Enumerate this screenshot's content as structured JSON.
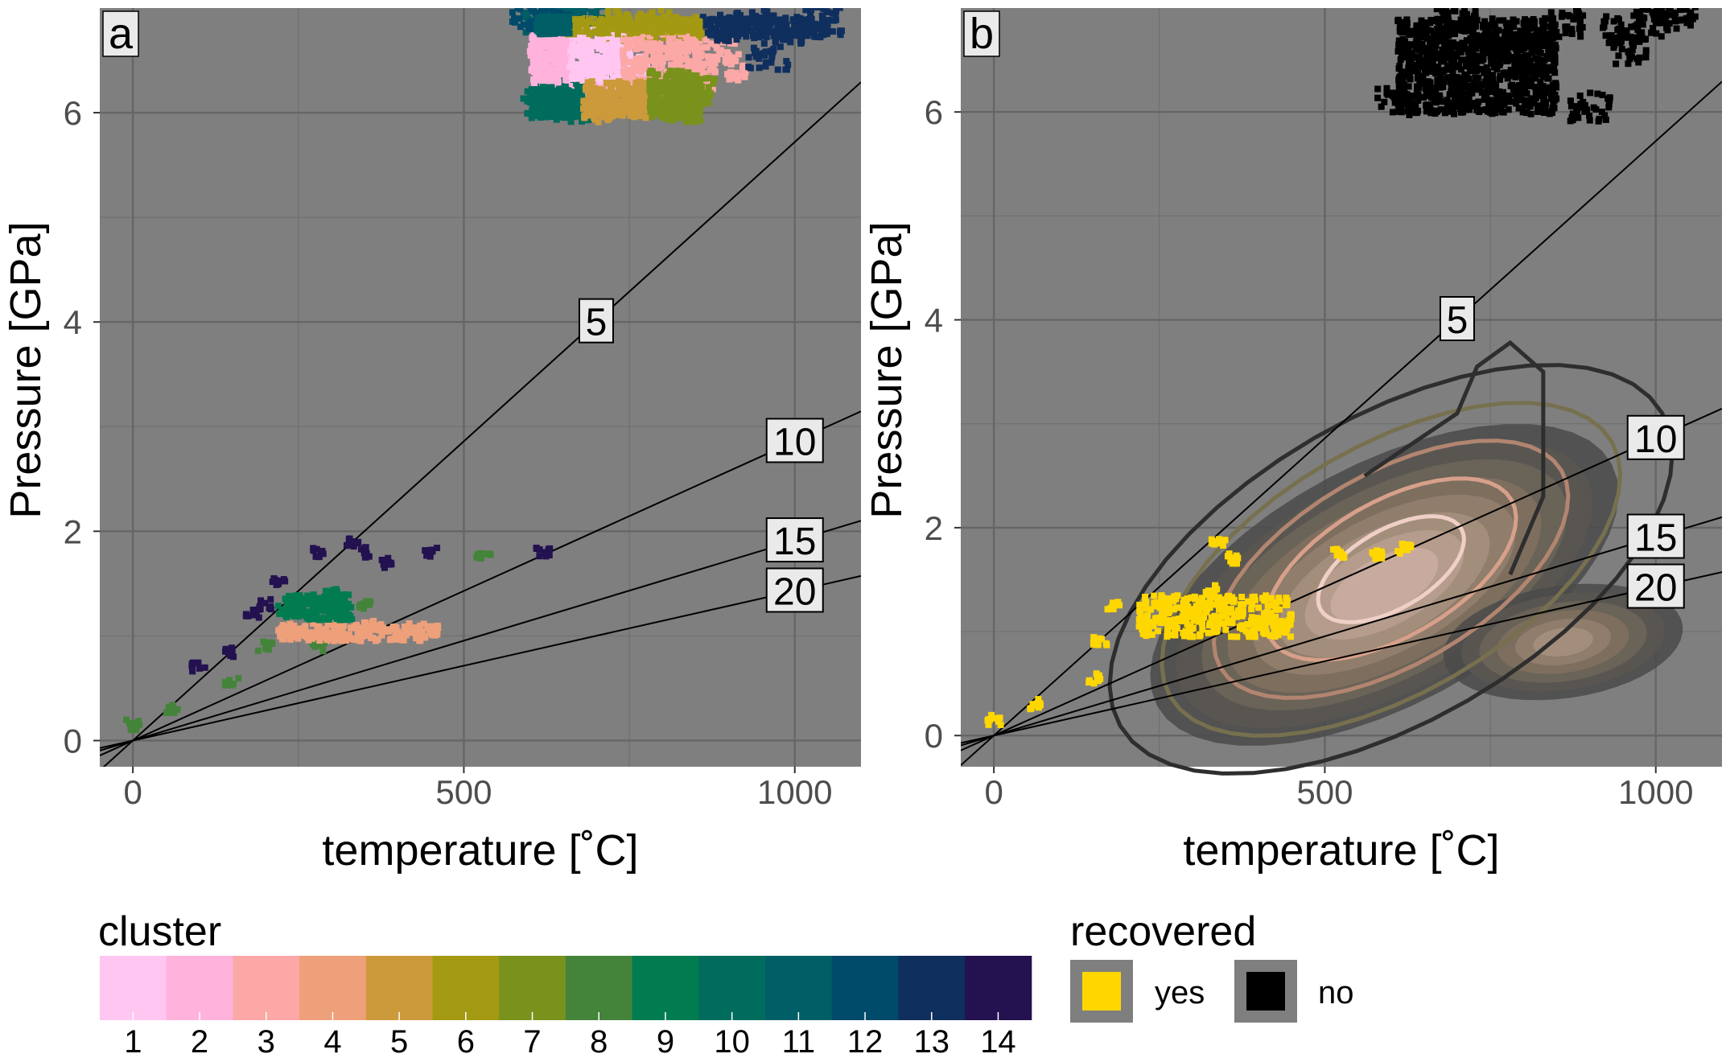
{
  "chart_data": [
    {
      "panel": "a",
      "type": "scatter",
      "xlabel": "temperature [˚C]",
      "ylabel": "Pressure [GPa]",
      "xlim": [
        -50,
        1100
      ],
      "ylim": [
        -0.25,
        7.0
      ],
      "xticks": [
        0,
        500,
        1000
      ],
      "yticks": [
        0,
        2,
        4,
        6
      ],
      "background": "#7f7f7f",
      "grid": true,
      "geotherm_lines": [
        {
          "label": "5",
          "slope": 0.00572,
          "label_x": 700
        },
        {
          "label": "10",
          "slope": 0.00286,
          "label_x": 1000
        },
        {
          "label": "15",
          "slope": 0.00191,
          "label_x": 1000
        },
        {
          "label": "20",
          "slope": 0.00143,
          "label_x": 1000
        }
      ],
      "series": [
        {
          "cluster": 1,
          "points": [
            [
              700,
              6.55
            ],
            [
              740,
              6.65
            ],
            [
              760,
              6.4
            ],
            [
              720,
              6.3
            ]
          ]
        },
        {
          "cluster": 2,
          "points": [
            [
              630,
              6.5
            ],
            [
              650,
              6.3
            ],
            [
              645,
              6.7
            ],
            [
              700,
              6.15
            ]
          ]
        },
        {
          "cluster": 3,
          "points": [
            [
              810,
              6.55
            ],
            [
              850,
              6.35
            ],
            [
              880,
              6.6
            ],
            [
              900,
              6.45
            ]
          ]
        },
        {
          "cluster": 4,
          "points": [
            [
              230,
              1.05
            ],
            [
              300,
              1.0
            ],
            [
              360,
              1.1
            ],
            [
              420,
              1.05
            ],
            [
              450,
              1.05
            ]
          ]
        },
        {
          "cluster": 5,
          "points": [
            [
              690,
              6.1
            ],
            [
              720,
              6.05
            ],
            [
              760,
              6.1
            ],
            [
              770,
              6.2
            ]
          ]
        },
        {
          "cluster": 6,
          "points": [
            [
              710,
              6.85
            ],
            [
              760,
              6.8
            ],
            [
              790,
              6.85
            ],
            [
              830,
              6.8
            ]
          ]
        },
        {
          "cluster": 7,
          "points": [
            [
              800,
              6.1
            ],
            [
              830,
              6.05
            ],
            [
              850,
              6.2
            ],
            [
              820,
              6.25
            ]
          ]
        },
        {
          "cluster": 8,
          "points": [
            [
              0,
              0.15
            ],
            [
              60,
              0.3
            ],
            [
              150,
              0.55
            ],
            [
              200,
              0.9
            ],
            [
              280,
              0.9
            ],
            [
              350,
              1.3
            ],
            [
              530,
              1.75
            ]
          ]
        },
        {
          "cluster": 9,
          "points": [
            [
              230,
              1.25
            ],
            [
              260,
              1.35
            ],
            [
              290,
              1.3
            ],
            [
              320,
              1.2
            ],
            [
              300,
              1.4
            ]
          ]
        },
        {
          "cluster": 10,
          "points": [
            [
              620,
              6.1
            ],
            [
              660,
              6.05
            ],
            [
              640,
              6.2
            ]
          ]
        },
        {
          "cluster": 11,
          "points": [
            [
              620,
              6.85
            ],
            [
              650,
              6.9
            ],
            [
              680,
              6.88
            ]
          ]
        },
        {
          "cluster": 12,
          "points": [
            [
              600,
              6.9
            ],
            [
              630,
              6.92
            ]
          ]
        },
        {
          "cluster": 13,
          "points": [
            [
              890,
              6.8
            ],
            [
              930,
              6.85
            ],
            [
              980,
              6.8
            ],
            [
              1040,
              6.88
            ],
            [
              960,
              6.55
            ]
          ]
        },
        {
          "cluster": 14,
          "points": [
            [
              150,
              0.85
            ],
            [
              180,
              1.2
            ],
            [
              220,
              1.5
            ],
            [
              280,
              1.8
            ],
            [
              330,
              1.9
            ],
            [
              350,
              1.8
            ],
            [
              380,
              1.7
            ],
            [
              450,
              1.8
            ],
            [
              620,
              1.8
            ],
            [
              100,
              0.7
            ],
            [
              200,
              1.3
            ]
          ]
        }
      ]
    },
    {
      "panel": "b",
      "type": "scatter",
      "xlabel": "temperature [˚C]",
      "ylabel": "Pressure [GPa]",
      "xlim": [
        -50,
        1100
      ],
      "ylim": [
        -0.3,
        7.0
      ],
      "xticks": [
        0,
        500,
        1000
      ],
      "yticks": [
        0,
        2,
        4,
        6
      ],
      "background": "#7f7f7f",
      "grid": true,
      "geotherm_lines": [
        {
          "label": "5",
          "slope": 0.00572,
          "label_x": 700
        },
        {
          "label": "10",
          "slope": 0.00286,
          "label_x": 1000
        },
        {
          "label": "15",
          "slope": 0.00191,
          "label_x": 1000
        },
        {
          "label": "20",
          "slope": 0.00143,
          "label_x": 1000
        }
      ],
      "series": [
        {
          "name": "yes",
          "color": "#ffd700",
          "points": [
            [
              0,
              0.15
            ],
            [
              60,
              0.3
            ],
            [
              150,
              0.55
            ],
            [
              160,
              0.9
            ],
            [
              180,
              1.25
            ],
            [
              230,
              1.1
            ],
            [
              260,
              1.3
            ],
            [
              300,
              1.2
            ],
            [
              330,
              1.4
            ],
            [
              340,
              1.85
            ],
            [
              360,
              1.7
            ],
            [
              400,
              1.1
            ],
            [
              430,
              1.05
            ],
            [
              520,
              1.75
            ],
            [
              580,
              1.75
            ],
            [
              620,
              1.8
            ]
          ]
        },
        {
          "name": "no",
          "color": "#000000",
          "points": [
            [
              610,
              6.1
            ],
            [
              650,
              6.5
            ],
            [
              700,
              6.9
            ],
            [
              760,
              6.6
            ],
            [
              820,
              6.3
            ],
            [
              860,
              6.85
            ],
            [
              900,
              6.05
            ],
            [
              950,
              6.8
            ],
            [
              1000,
              6.85
            ],
            [
              1030,
              6.9
            ],
            [
              960,
              6.6
            ]
          ]
        }
      ],
      "density_contours": "2D density of the 'no' observations, drawn as filled and outlined contours"
    }
  ],
  "panel_labels": [
    "a",
    "b"
  ],
  "legend_cluster": {
    "title": "cluster",
    "labels": [
      "1",
      "2",
      "3",
      "4",
      "5",
      "6",
      "7",
      "8",
      "9",
      "10",
      "11",
      "12",
      "13",
      "14"
    ],
    "colors": [
      "#ffc6f1",
      "#ffb3dc",
      "#fba8a7",
      "#eea07a",
      "#cc9a3b",
      "#a49912",
      "#78921c",
      "#44843a",
      "#007c50",
      "#006c5d",
      "#005e66",
      "#004a6a",
      "#0f2f5e",
      "#231150"
    ]
  },
  "legend_recovered": {
    "title": "recovered",
    "items": [
      {
        "label": "yes",
        "color": "#ffd700"
      },
      {
        "label": "no",
        "color": "#000000"
      }
    ]
  }
}
